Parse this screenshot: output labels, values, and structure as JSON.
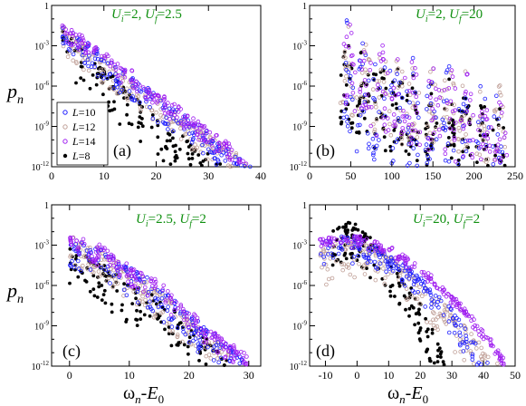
{
  "figure": {
    "ylabel_main": "p",
    "ylabel_sub": "n",
    "xlabel_main": "ω",
    "xlabel_sub": "n",
    "xlabel_mid": "-E",
    "xlabel_sub0": "0"
  },
  "colors": {
    "L10": "#1f1fff",
    "L12": "#c0a098",
    "L14": "#a020f0",
    "L8": "#000000",
    "annotation": "#109010"
  },
  "chart_data": [
    {
      "type": "scatter",
      "panel_label": "(a)",
      "annotation": {
        "Ui_label": "U",
        "Ui_sub": "i",
        "Ui_val": "=2, ",
        "Uf_label": "U",
        "Uf_sub": "f",
        "Uf_val": "=2.5"
      },
      "xlim": [
        0,
        40
      ],
      "ylim_log10": [
        -12,
        0
      ],
      "y_scale": "log",
      "xticks": [
        "0",
        "10",
        "20",
        "30",
        "40"
      ],
      "yticks": [
        "10^-12",
        "10^-9",
        "10^-6",
        "10^-3",
        "1"
      ],
      "legend": {
        "position": "left-middle",
        "entries": [
          "L=10",
          "L=12",
          "L=14",
          "L=8"
        ]
      },
      "series": [
        {
          "name": "L=10",
          "style": "open",
          "color_key": "L10",
          "envelope": [
            [
              2,
              -1.5
            ],
            [
              8,
              -3.2
            ],
            [
              15,
              -5.2
            ],
            [
              22,
              -7.4
            ],
            [
              28,
              -9.0
            ],
            [
              33,
              -10.5
            ],
            [
              38,
              -12
            ]
          ],
          "spread": 1.2
        },
        {
          "name": "L=12",
          "style": "open",
          "color_key": "L12",
          "envelope": [
            [
              2,
              -1.5
            ],
            [
              8,
              -3.4
            ],
            [
              15,
              -5.3
            ],
            [
              22,
              -7.4
            ],
            [
              28,
              -9.1
            ],
            [
              34,
              -10.8
            ],
            [
              38,
              -12
            ]
          ],
          "spread": 1.4
        },
        {
          "name": "L=14",
          "style": "open",
          "color_key": "L14",
          "envelope": [
            [
              2,
              -1.4
            ],
            [
              8,
              -3.0
            ],
            [
              15,
              -4.9
            ],
            [
              22,
              -7.0
            ],
            [
              28,
              -8.6
            ],
            [
              34,
              -10.4
            ],
            [
              38,
              -12
            ]
          ],
          "spread": 0.8
        },
        {
          "name": "L=8",
          "style": "filled",
          "color_key": "L8",
          "envelope": [
            [
              2,
              -2.0
            ],
            [
              8,
              -4.0
            ],
            [
              15,
              -6.5
            ],
            [
              20,
              -8.5
            ],
            [
              26,
              -10.0
            ],
            [
              30,
              -11.0
            ],
            [
              33,
              -12
            ]
          ],
          "spread": 2.0
        }
      ]
    },
    {
      "type": "scatter",
      "panel_label": "(b)",
      "annotation": {
        "Ui_label": "U",
        "Ui_sub": "i",
        "Ui_val": "=2, ",
        "Uf_label": "U",
        "Uf_sub": "f",
        "Uf_val": "=20"
      },
      "xlim": [
        0,
        250
      ],
      "ylim_log10": [
        -12,
        0
      ],
      "y_scale": "log",
      "xticks": [
        "0",
        "50",
        "100",
        "150",
        "200",
        "250"
      ],
      "yticks": [
        "10^-12",
        "10^-9",
        "10^-6",
        "10^-3",
        "1"
      ],
      "bands_centers": [
        45,
        65,
        85,
        105,
        125,
        148,
        168,
        188,
        210,
        230
      ],
      "band_top_log10": [
        -0.8,
        -1.5,
        -2.2,
        -2.8,
        -3.2,
        -3.6,
        -4.0,
        -4.5,
        -5.0,
        -5.4
      ],
      "series": [
        {
          "name": "L=10",
          "style": "open",
          "color_key": "L10",
          "envelope": [],
          "spread": 0
        },
        {
          "name": "L=12",
          "style": "open",
          "color_key": "L12",
          "envelope": [],
          "spread": 0
        },
        {
          "name": "L=14",
          "style": "open",
          "color_key": "L14",
          "envelope": [],
          "spread": 0
        },
        {
          "name": "L=8",
          "style": "filled",
          "color_key": "L8",
          "envelope": [],
          "spread": 0
        }
      ]
    },
    {
      "type": "scatter",
      "panel_label": "(c)",
      "annotation": {
        "Ui_label": "U",
        "Ui_sub": "i",
        "Ui_val": "=2.5, ",
        "Uf_label": "U",
        "Uf_sub": "f",
        "Uf_val": "=2"
      },
      "xlim": [
        -3,
        32
      ],
      "ylim_log10": [
        -12,
        0
      ],
      "y_scale": "log",
      "xticks": [
        "0",
        "10",
        "20",
        "30"
      ],
      "xtick_values": [
        0,
        10,
        20,
        30
      ],
      "yticks": [
        "10^-12",
        "10^-9",
        "10^-6",
        "10^-3",
        "1"
      ],
      "series": [
        {
          "name": "L=10",
          "style": "open",
          "color_key": "L10",
          "envelope": [
            [
              0,
              -2.5
            ],
            [
              5,
              -3.2
            ],
            [
              10,
              -4.8
            ],
            [
              15,
              -6.0
            ],
            [
              20,
              -8.2
            ],
            [
              25,
              -10.0
            ],
            [
              29,
              -11.5
            ]
          ],
          "spread": 1.5
        },
        {
          "name": "L=12",
          "style": "open",
          "color_key": "L12",
          "envelope": [
            [
              0,
              -2.5
            ],
            [
              5,
              -3.4
            ],
            [
              10,
              -5.0
            ],
            [
              15,
              -6.3
            ],
            [
              20,
              -8.5
            ],
            [
              25,
              -10.3
            ],
            [
              28,
              -11.8
            ]
          ],
          "spread": 1.5
        },
        {
          "name": "L=14",
          "style": "open",
          "color_key": "L14",
          "envelope": [
            [
              0,
              -2.4
            ],
            [
              5,
              -3.1
            ],
            [
              10,
              -4.6
            ],
            [
              15,
              -5.8
            ],
            [
              20,
              -8.0
            ],
            [
              25,
              -9.8
            ],
            [
              30,
              -11.3
            ]
          ],
          "spread": 0.9
        },
        {
          "name": "L=8",
          "style": "filled",
          "color_key": "L8",
          "envelope": [
            [
              0,
              -3.0
            ],
            [
              5,
              -4.0
            ],
            [
              10,
              -6.0
            ],
            [
              15,
              -7.0
            ],
            [
              20,
              -9.0
            ],
            [
              25,
              -10.8
            ],
            [
              27,
              -12
            ]
          ],
          "spread": 2.0
        }
      ]
    },
    {
      "type": "scatter",
      "panel_label": "(d)",
      "annotation": {
        "Ui_label": "U",
        "Ui_sub": "i",
        "Ui_val": "=20, ",
        "Uf_label": "U",
        "Uf_sub": "f",
        "Uf_val": "=2"
      },
      "xlim": [
        -15,
        50
      ],
      "ylim_log10": [
        -12,
        0
      ],
      "y_scale": "log",
      "xticks": [
        "-10",
        "0",
        "10",
        "20",
        "30",
        "40",
        "50"
      ],
      "xtick_values": [
        -10,
        0,
        10,
        20,
        30,
        40,
        50
      ],
      "yticks": [
        "10^-12",
        "10^-9",
        "10^-6",
        "10^-3",
        "1"
      ],
      "series": [
        {
          "name": "L=10",
          "style": "open",
          "color_key": "L10",
          "envelope": [
            [
              -12,
              -2.8
            ],
            [
              -5,
              -2.2
            ],
            [
              5,
              -3.0
            ],
            [
              15,
              -4.5
            ],
            [
              25,
              -6.5
            ],
            [
              32,
              -8.5
            ],
            [
              38,
              -10.5
            ],
            [
              42,
              -12
            ]
          ],
          "spread": 1.2
        },
        {
          "name": "L=12",
          "style": "open",
          "color_key": "L12",
          "envelope": [
            [
              -12,
              -3.5
            ],
            [
              -5,
              -2.5
            ],
            [
              5,
              -3.0
            ],
            [
              15,
              -4.5
            ],
            [
              25,
              -6.8
            ],
            [
              33,
              -8.8
            ],
            [
              40,
              -10.8
            ],
            [
              45,
              -12
            ]
          ],
          "spread": 1.8
        },
        {
          "name": "L=14",
          "style": "open",
          "color_key": "L14",
          "envelope": [
            [
              -12,
              -2.6
            ],
            [
              -5,
              -2.3
            ],
            [
              5,
              -2.6
            ],
            [
              15,
              -3.8
            ],
            [
              25,
              -5.6
            ],
            [
              35,
              -8.0
            ],
            [
              42,
              -10.0
            ],
            [
              47,
              -11.8
            ]
          ],
          "spread": 0.4
        },
        {
          "name": "L=8",
          "style": "filled",
          "color_key": "L8",
          "envelope": [
            [
              -8,
              -2.0
            ],
            [
              -2,
              -1.2
            ],
            [
              5,
              -2.8
            ],
            [
              12,
              -4.5
            ],
            [
              18,
              -6.5
            ],
            [
              22,
              -8.5
            ],
            [
              26,
              -10.5
            ],
            [
              28,
              -12
            ]
          ],
          "spread": 1.8
        }
      ]
    }
  ]
}
